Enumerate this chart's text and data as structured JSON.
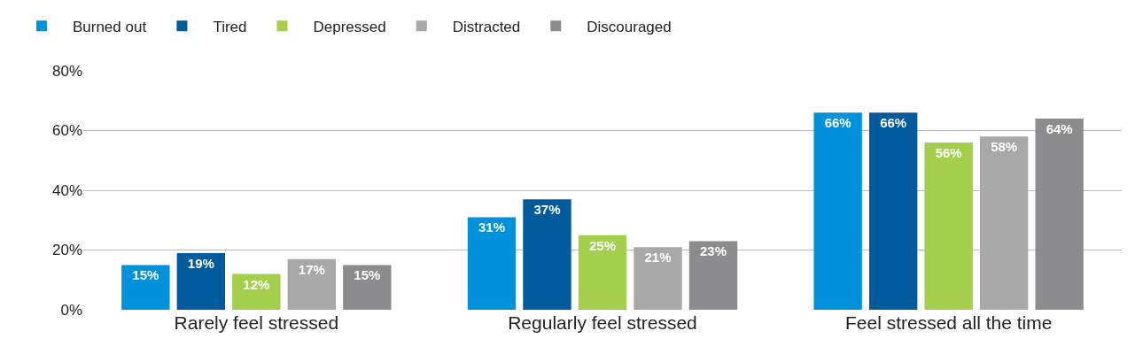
{
  "chart_data": {
    "type": "bar",
    "categories": [
      "Rarely feel stressed",
      "Regularly feel stressed",
      "Feel stressed all the time"
    ],
    "series": [
      {
        "name": "Burned out",
        "color": "#0091da",
        "values": [
          15,
          31,
          66
        ],
        "value_labels": [
          "15%",
          "31%",
          "66%"
        ]
      },
      {
        "name": "Tired",
        "color": "#005a9c",
        "values": [
          19,
          37,
          66
        ],
        "value_labels": [
          "19%",
          "37%",
          "66%"
        ]
      },
      {
        "name": "Depressed",
        "color": "#a4cf4c",
        "values": [
          12,
          25,
          56
        ],
        "value_labels": [
          "12%",
          "25%",
          "56%"
        ]
      },
      {
        "name": "Distracted",
        "color": "#a8a8a8",
        "values": [
          17,
          21,
          58
        ],
        "value_labels": [
          "17%",
          "21%",
          "58%"
        ]
      },
      {
        "name": "Discouraged",
        "color": "#8c8c8e",
        "values": [
          15,
          23,
          64
        ],
        "value_labels": [
          "15%",
          "23%",
          "64%"
        ]
      }
    ],
    "ylim": [
      0,
      80
    ],
    "yticks": [
      {
        "value": 0,
        "label": "0%"
      },
      {
        "value": 20,
        "label": "20%"
      },
      {
        "value": 40,
        "label": "40%"
      },
      {
        "value": 60,
        "label": "60%"
      },
      {
        "value": 80,
        "label": "80%"
      }
    ],
    "grid": "y",
    "legend": "top left"
  }
}
